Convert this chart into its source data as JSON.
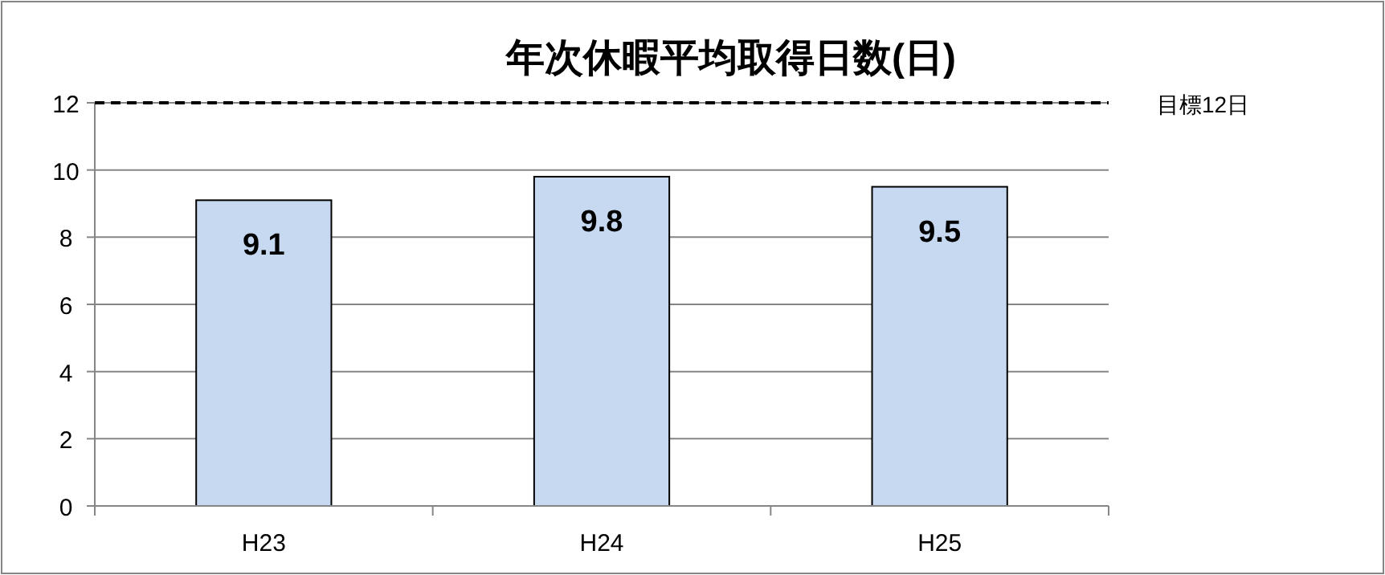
{
  "chart_data": {
    "type": "bar",
    "title": "年次休暇平均取得日数(日)",
    "categories": [
      "H23",
      "H24",
      "H25"
    ],
    "values": [
      9.1,
      9.8,
      9.5
    ],
    "color": "#c6d9f1",
    "ylim": [
      0,
      12
    ],
    "yticks": [
      0,
      2,
      4,
      6,
      8,
      10,
      12
    ],
    "grid": "y",
    "data_labels": true,
    "ref_lines": [
      {
        "axis": "y",
        "value": 12,
        "label": "目標12日",
        "line_style": "dashed",
        "color": "#000000"
      }
    ]
  }
}
